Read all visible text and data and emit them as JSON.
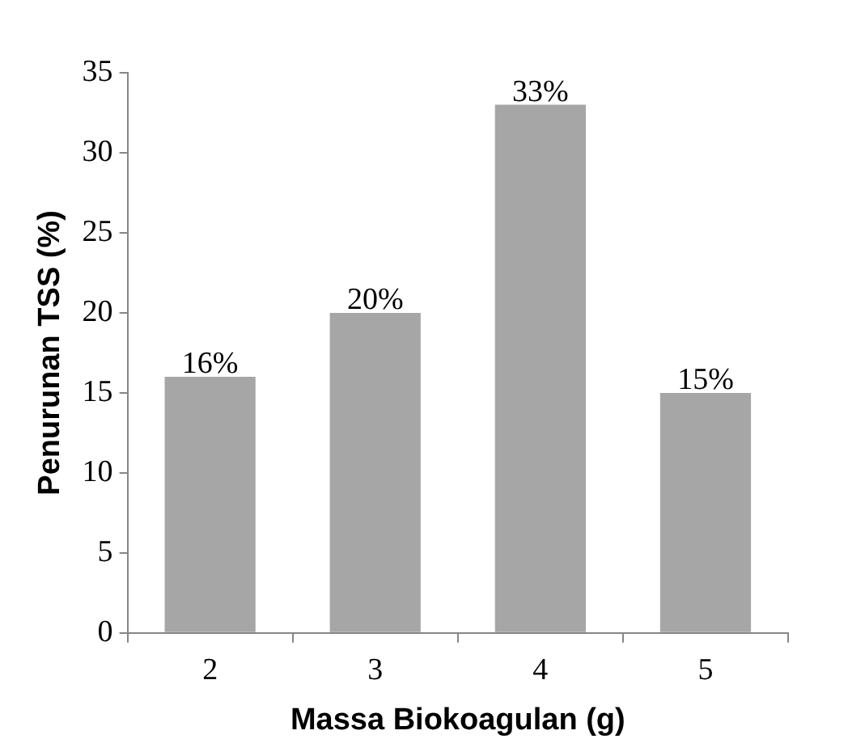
{
  "chart_data": {
    "type": "bar",
    "xlabel": "Massa Biokoagulan (g)",
    "ylabel": "Penurunan TSS (%)",
    "categories": [
      "2",
      "3",
      "4",
      "5"
    ],
    "values": [
      16,
      20,
      33,
      15
    ],
    "value_labels": [
      "16%",
      "20%",
      "33%",
      "15%"
    ],
    "color": "#a6a6a6",
    "ylim": [
      0,
      35
    ],
    "yticks": [
      0,
      5,
      10,
      15,
      20,
      25,
      30,
      35
    ],
    "grid": false,
    "legend": false
  }
}
